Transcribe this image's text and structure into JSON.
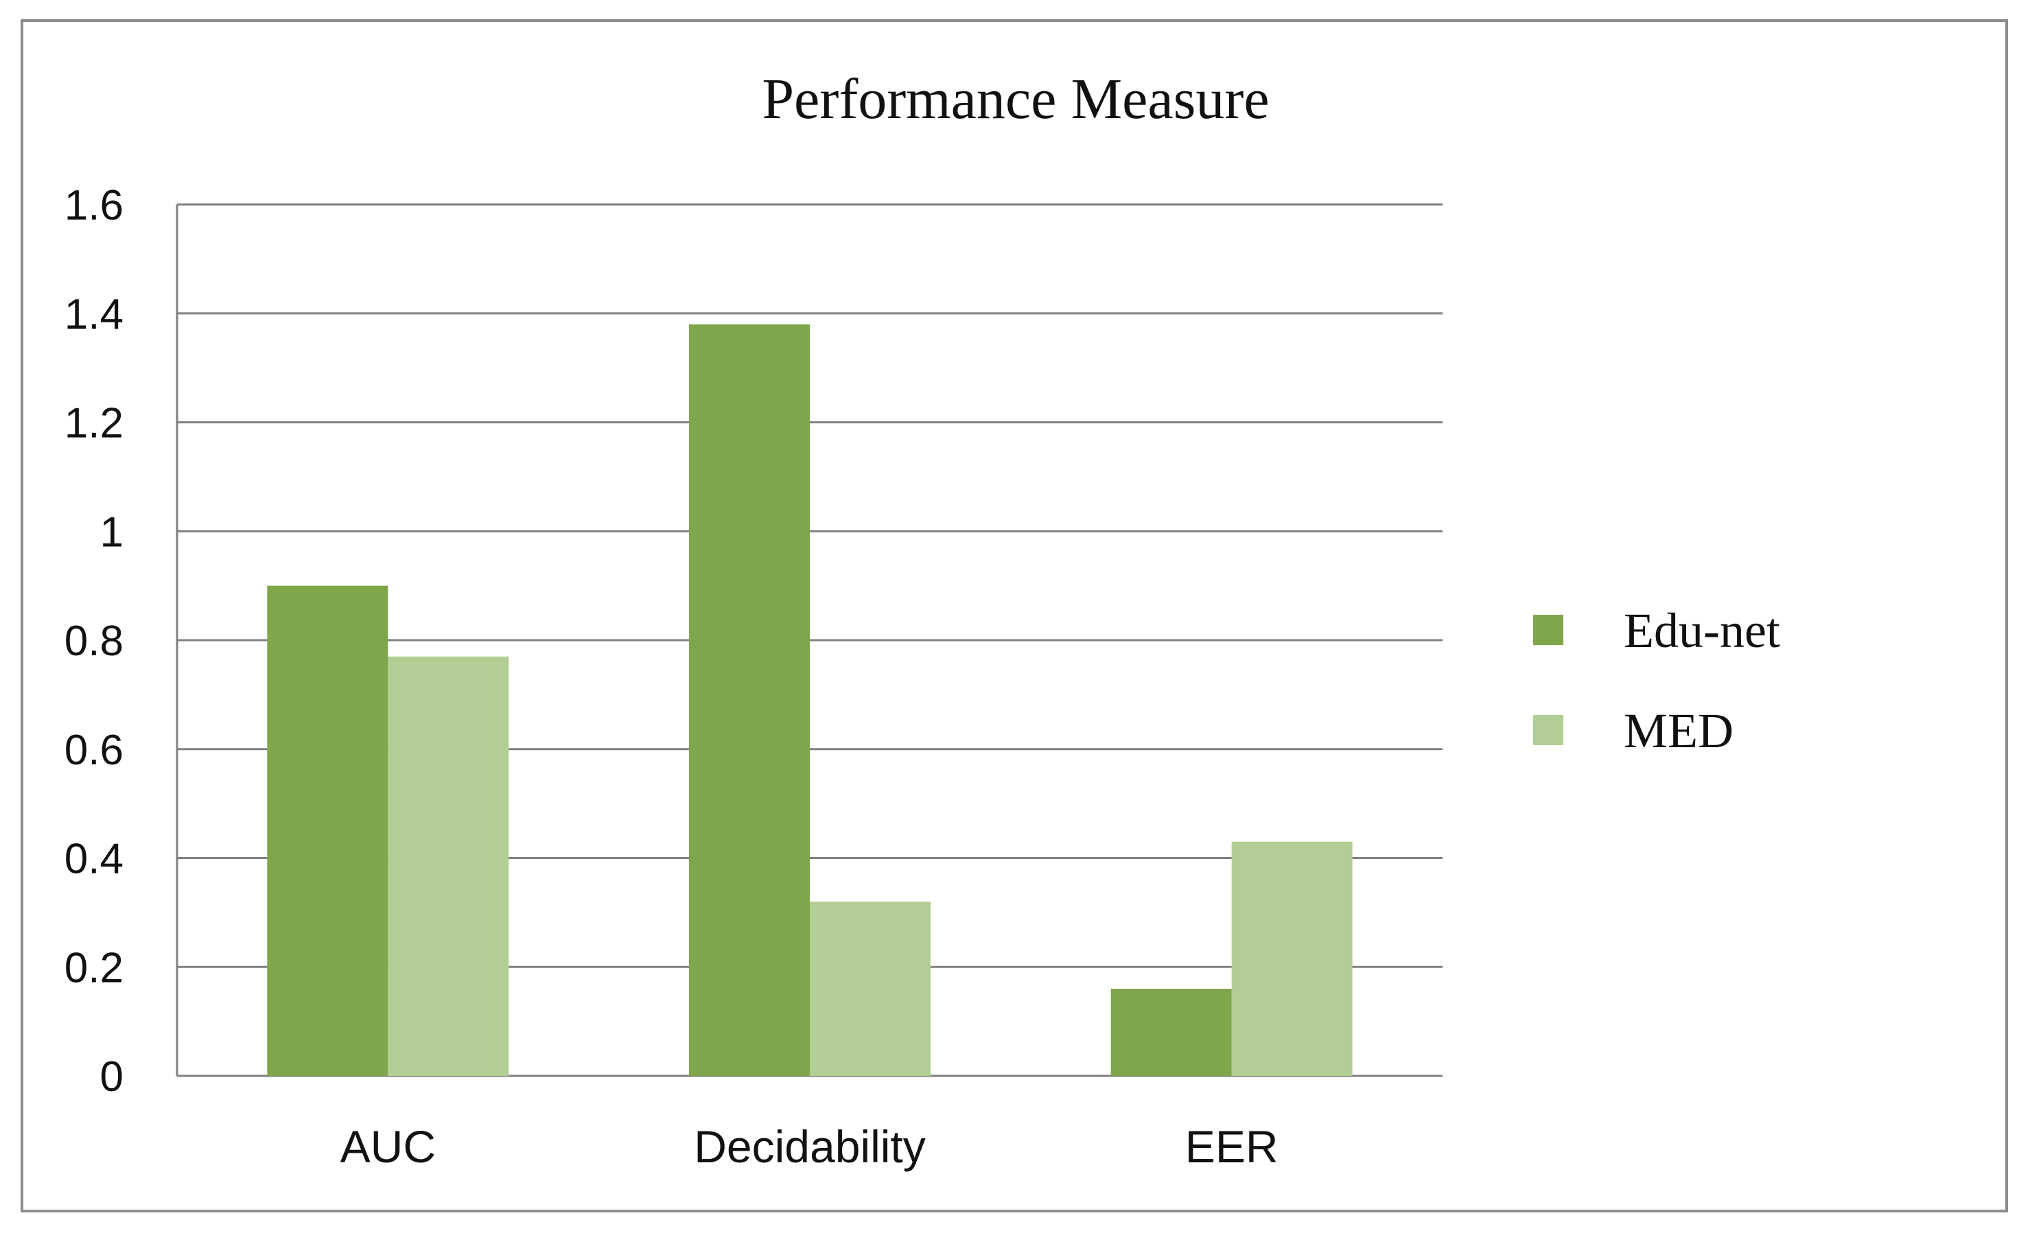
{
  "chart_data": {
    "type": "bar",
    "title": "Performance Measure",
    "xlabel": "",
    "ylabel": "",
    "categories": [
      "AUC",
      "Decidability",
      "EER"
    ],
    "series": [
      {
        "name": "Edu-net",
        "values": [
          0.9,
          1.38,
          0.16
        ],
        "color": "#7fa64a"
      },
      {
        "name": "MED",
        "values": [
          0.77,
          0.32,
          0.43
        ],
        "color": "#b2ce94"
      }
    ],
    "ylim": [
      0,
      1.6
    ],
    "yticks": [
      "0",
      "0.2",
      "0.4",
      "0.6",
      "0.8",
      "1",
      "1.2",
      "1.4",
      "1.6"
    ],
    "grid": true,
    "legend_position": "right"
  }
}
